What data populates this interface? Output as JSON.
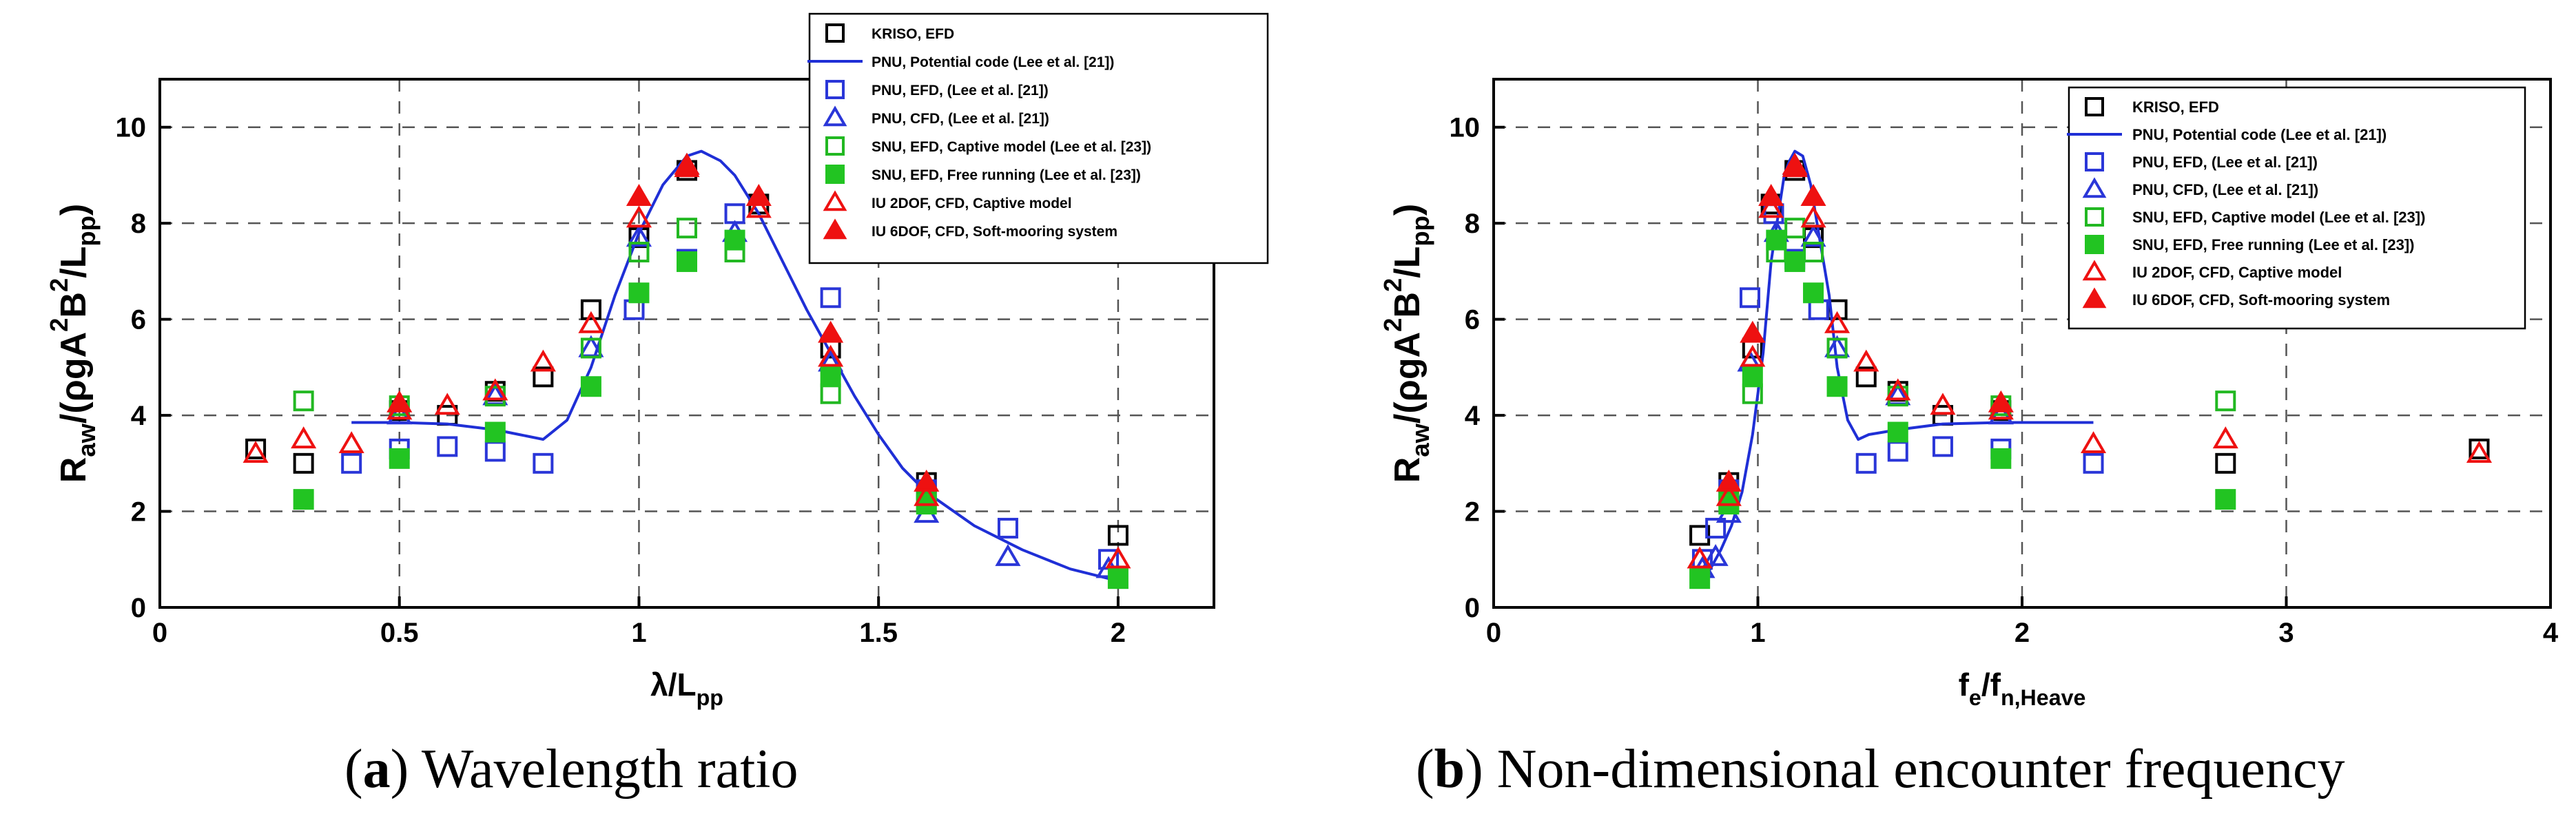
{
  "captions": [
    {
      "letter": "a",
      "text": "Wavelength ratio"
    },
    {
      "letter": "b",
      "text": "Non-dimensional encounter frequency"
    }
  ],
  "legend_styles": [
    {
      "kind": "square",
      "stroke": "#000000",
      "fill": "none"
    },
    {
      "kind": "line",
      "stroke": "#1f2fd6",
      "fill": "none"
    },
    {
      "kind": "square",
      "stroke": "#2a36d8",
      "fill": "none"
    },
    {
      "kind": "triangle",
      "stroke": "#2a36d8",
      "fill": "none"
    },
    {
      "kind": "square",
      "stroke": "#22b822",
      "fill": "none"
    },
    {
      "kind": "square",
      "stroke": "#22c422",
      "fill": "#22c422"
    },
    {
      "kind": "triangle",
      "stroke": "#ee1111",
      "fill": "none"
    },
    {
      "kind": "triangle",
      "stroke": "#ee1111",
      "fill": "#ee1111"
    }
  ],
  "chart_data": [
    {
      "type": "scatter",
      "xlabel": "λ/Lpp",
      "ylabel": "Raw/(ρgA²B²/Lpp)",
      "xlim": [
        0,
        2.2
      ],
      "ylim": [
        0,
        11
      ],
      "xticks": [
        "0",
        "0.5",
        "1",
        "1.5",
        "2"
      ],
      "xtick_values": [
        0,
        0.5,
        1,
        1.5,
        2
      ],
      "yticks": [
        "0",
        "2",
        "4",
        "6",
        "8",
        "10"
      ],
      "ytick_values": [
        0,
        2,
        4,
        6,
        8,
        10
      ],
      "grid": true,
      "legend_position": "top-right",
      "series": [
        {
          "name": "KRISO, EFD",
          "x": [
            0.2,
            0.3,
            0.5,
            0.6,
            0.7,
            0.8,
            0.9,
            1.0,
            1.1,
            1.25,
            1.4,
            1.6,
            2.0
          ],
          "y": [
            3.3,
            3.0,
            4.1,
            4.0,
            4.5,
            4.8,
            6.2,
            7.7,
            9.1,
            8.4,
            5.4,
            2.6,
            1.5
          ]
        },
        {
          "name": "PNU, Potential code (Lee et al. [21])",
          "x": [
            0.4,
            0.5,
            0.6,
            0.7,
            0.75,
            0.8,
            0.85,
            0.9,
            0.95,
            1.0,
            1.05,
            1.1,
            1.13,
            1.17,
            1.2,
            1.25,
            1.3,
            1.35,
            1.4,
            1.45,
            1.5,
            1.55,
            1.6,
            1.7,
            1.8,
            1.9,
            2.0
          ],
          "y": [
            3.85,
            3.85,
            3.82,
            3.7,
            3.6,
            3.5,
            3.9,
            5.0,
            6.5,
            7.8,
            8.8,
            9.4,
            9.5,
            9.3,
            9.0,
            8.2,
            7.2,
            6.2,
            5.3,
            4.4,
            3.6,
            2.9,
            2.4,
            1.7,
            1.2,
            0.8,
            0.55
          ]
        },
        {
          "name": "PNU, EFD, (Lee et al. [21])",
          "x": [
            0.4,
            0.5,
            0.6,
            0.7,
            0.8,
            0.99,
            1.1,
            1.2,
            1.4,
            1.6,
            1.77,
            1.98
          ],
          "y": [
            3.0,
            3.3,
            3.35,
            3.25,
            3.0,
            6.2,
            7.25,
            8.2,
            6.45,
            2.45,
            1.65,
            1.0
          ]
        },
        {
          "name": "PNU, CFD, (Lee et al. [21])",
          "x": [
            0.5,
            0.7,
            0.9,
            1.0,
            1.1,
            1.2,
            1.4,
            1.6,
            1.77,
            1.98
          ],
          "y": [
            4.0,
            4.4,
            5.4,
            7.7,
            9.2,
            7.8,
            5.1,
            1.95,
            1.05,
            0.8
          ]
        },
        {
          "name": "SNU, EFD, Captive model (Lee et al. [23])",
          "x": [
            0.3,
            0.5,
            0.7,
            0.9,
            1.0,
            1.1,
            1.2,
            1.4,
            1.6
          ],
          "y": [
            4.3,
            4.2,
            4.4,
            5.4,
            7.4,
            7.9,
            7.4,
            4.45,
            2.2
          ]
        },
        {
          "name": "SNU, EFD, Free running (Lee et al. [23])",
          "x": [
            0.3,
            0.5,
            0.7,
            0.9,
            1.0,
            1.1,
            1.2,
            1.4,
            1.6,
            2.0
          ],
          "y": [
            2.25,
            3.1,
            3.65,
            4.6,
            6.55,
            7.2,
            7.65,
            4.8,
            2.15,
            0.6
          ]
        },
        {
          "name": "IU 2DOF, CFD, Captive model",
          "x": [
            0.2,
            0.3,
            0.4,
            0.5,
            0.6,
            0.7,
            0.8,
            0.9,
            1.0,
            1.1,
            1.25,
            1.4,
            1.6,
            2.0
          ],
          "y": [
            3.2,
            3.5,
            3.4,
            4.1,
            4.2,
            4.5,
            5.1,
            5.9,
            8.1,
            9.15,
            8.3,
            5.2,
            2.3,
            1.0
          ]
        },
        {
          "name": "IU 6DOF, CFD, Soft-mooring system",
          "x": [
            0.5,
            1.0,
            1.1,
            1.25,
            1.4,
            1.6
          ],
          "y": [
            4.25,
            8.55,
            9.2,
            8.55,
            5.7,
            2.6
          ]
        }
      ]
    },
    {
      "type": "scatter",
      "xlabel": "fe/fn,Heave",
      "ylabel": "Raw/(ρgA²B²/Lpp)",
      "xlim": [
        0,
        4
      ],
      "ylim": [
        0,
        11
      ],
      "xticks": [
        "0",
        "1",
        "2",
        "3",
        "4"
      ],
      "xtick_values": [
        0,
        1,
        2,
        3,
        4
      ],
      "yticks": [
        "0",
        "2",
        "4",
        "6",
        "8",
        "10"
      ],
      "ytick_values": [
        0,
        2,
        4,
        6,
        8,
        10
      ],
      "grid": true,
      "legend_position": "top-right",
      "series": [
        {
          "name": "KRISO, EFD",
          "x": [
            3.73,
            2.77,
            1.92,
            1.7,
            1.53,
            1.41,
            1.3,
            1.21,
            1.14,
            1.05,
            0.98,
            0.89,
            0.78
          ],
          "y": [
            3.3,
            3.0,
            4.1,
            4.0,
            4.5,
            4.8,
            6.2,
            7.7,
            9.1,
            8.4,
            5.4,
            2.6,
            1.5
          ]
        },
        {
          "name": "PNU, Potential code (Lee et al. [21])",
          "x": [
            0.78,
            0.82,
            0.86,
            0.9,
            0.94,
            0.98,
            1.02,
            1.05,
            1.1,
            1.12,
            1.14,
            1.17,
            1.2,
            1.23,
            1.27,
            1.3,
            1.34,
            1.38,
            1.42,
            1.53,
            1.7,
            1.92,
            2.27
          ],
          "y": [
            0.55,
            0.8,
            1.2,
            1.7,
            2.4,
            3.6,
            5.3,
            7.2,
            9.0,
            9.3,
            9.5,
            9.4,
            8.8,
            7.8,
            6.5,
            5.0,
            3.9,
            3.5,
            3.6,
            3.7,
            3.82,
            3.85,
            3.85
          ]
        },
        {
          "name": "PNU, EFD, (Lee et al. [21])",
          "x": [
            2.27,
            1.92,
            1.7,
            1.53,
            1.41,
            1.23,
            1.14,
            1.06,
            0.97,
            0.89,
            0.84,
            0.79
          ],
          "y": [
            3.0,
            3.3,
            3.35,
            3.25,
            3.0,
            6.2,
            7.25,
            8.2,
            6.45,
            2.45,
            1.65,
            1.0
          ]
        },
        {
          "name": "PNU, CFD, (Lee et al. [21])",
          "x": [
            1.92,
            1.53,
            1.3,
            1.21,
            1.14,
            1.07,
            0.97,
            0.89,
            0.84,
            0.79
          ],
          "y": [
            4.0,
            4.4,
            5.4,
            7.7,
            9.2,
            7.8,
            5.1,
            1.95,
            1.05,
            0.8
          ]
        },
        {
          "name": "SNU, EFD, Captive model (Lee et al. [23])",
          "x": [
            2.77,
            1.92,
            1.53,
            1.3,
            1.21,
            1.14,
            1.07,
            0.98,
            0.89
          ],
          "y": [
            4.3,
            4.2,
            4.4,
            5.4,
            7.4,
            7.9,
            7.4,
            4.45,
            2.2
          ]
        },
        {
          "name": "SNU, EFD, Free running (Lee et al. [23])",
          "x": [
            2.77,
            1.92,
            1.53,
            1.3,
            1.21,
            1.14,
            1.07,
            0.98,
            0.89,
            0.78
          ],
          "y": [
            2.25,
            3.1,
            3.65,
            4.6,
            6.55,
            7.2,
            7.65,
            4.8,
            2.15,
            0.6
          ]
        },
        {
          "name": "IU 2DOF, CFD, Captive model",
          "x": [
            3.73,
            2.77,
            2.27,
            1.92,
            1.7,
            1.53,
            1.41,
            1.3,
            1.21,
            1.14,
            1.05,
            0.98,
            0.89,
            0.78
          ],
          "y": [
            3.2,
            3.5,
            3.4,
            4.1,
            4.2,
            4.5,
            5.1,
            5.9,
            8.1,
            9.15,
            8.3,
            5.2,
            2.3,
            1.0
          ]
        },
        {
          "name": "IU 6DOF, CFD, Soft-mooring system",
          "x": [
            1.92,
            1.21,
            1.14,
            1.05,
            0.98,
            0.89
          ],
          "y": [
            4.25,
            8.55,
            9.2,
            8.55,
            5.7,
            2.6
          ]
        }
      ]
    }
  ]
}
